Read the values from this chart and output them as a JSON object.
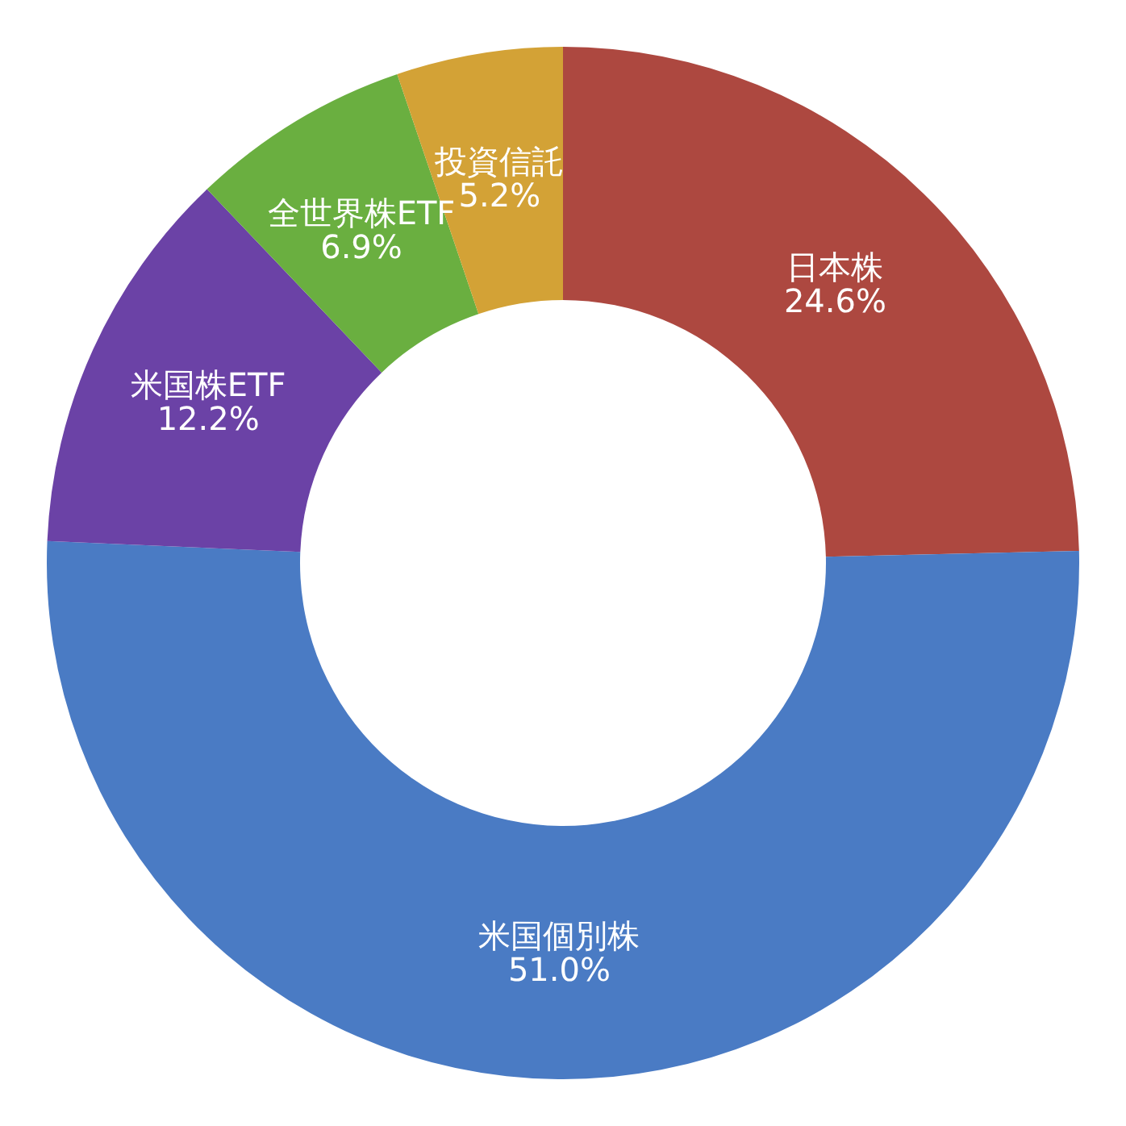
{
  "chart_data": {
    "type": "donut",
    "categories": [
      "日本株",
      "米国個別株",
      "米国株ETF",
      "全世界株ETF",
      "投資信託"
    ],
    "values": [
      24.6,
      51.0,
      12.2,
      6.9,
      5.2
    ],
    "value_labels": [
      "24.6%",
      "51.0%",
      "12.2%",
      "6.9%",
      "5.2%"
    ],
    "colors": [
      "#ad4840",
      "#4a7bc4",
      "#6b42a6",
      "#6aaf40",
      "#d3a236"
    ],
    "legend": false
  }
}
